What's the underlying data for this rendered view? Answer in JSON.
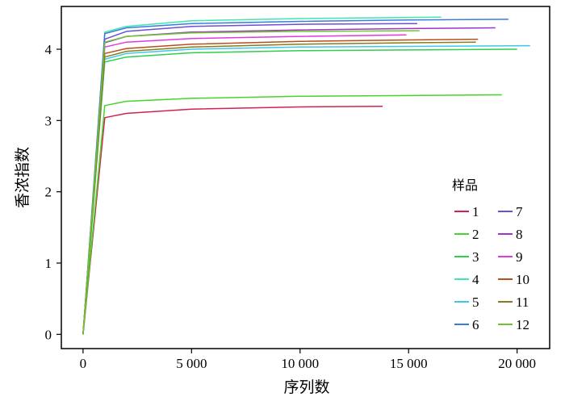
{
  "chart_data": {
    "type": "line",
    "xlabel": "序列数",
    "ylabel": "香浓指数",
    "xlim": [
      -1000,
      21500
    ],
    "ylim": [
      -0.2,
      4.6
    ],
    "x_ticks": [
      0,
      5000,
      10000,
      15000,
      20000
    ],
    "x_tick_labels": [
      "0",
      "5 000",
      "10 000",
      "15 000",
      "20 000"
    ],
    "y_ticks": [
      0,
      1,
      2,
      3,
      4
    ],
    "y_tick_labels": [
      "0",
      "1",
      "2",
      "3",
      "4"
    ],
    "grid": false,
    "legend": {
      "title": "样品",
      "placement": "right",
      "columns": 2
    },
    "series": [
      {
        "name": "1",
        "color": "#d6204f",
        "x": [
          0,
          1000,
          2000,
          5000,
          10000,
          13800
        ],
        "y": [
          0,
          3.04,
          3.1,
          3.16,
          3.19,
          3.2
        ]
      },
      {
        "name": "2",
        "color": "#44d62c",
        "x": [
          0,
          1000,
          2000,
          5000,
          10000,
          15000,
          19300
        ],
        "y": [
          0,
          3.21,
          3.27,
          3.31,
          3.34,
          3.35,
          3.36
        ]
      },
      {
        "name": "3",
        "color": "#2ecf4a",
        "x": [
          0,
          1000,
          2000,
          5000,
          10000,
          15000,
          20000
        ],
        "y": [
          0,
          3.82,
          3.89,
          3.95,
          3.98,
          3.99,
          4.0
        ]
      },
      {
        "name": "4",
        "color": "#3ee6b0",
        "x": [
          0,
          1000,
          2000,
          5000,
          10000,
          16500
        ],
        "y": [
          0,
          4.24,
          4.32,
          4.4,
          4.43,
          4.45
        ]
      },
      {
        "name": "5",
        "color": "#3cc8ea",
        "x": [
          0,
          1000,
          2000,
          5000,
          10000,
          15000,
          20600
        ],
        "y": [
          0,
          3.86,
          3.94,
          4.0,
          4.03,
          4.04,
          4.05
        ]
      },
      {
        "name": "6",
        "color": "#3a7be0",
        "x": [
          0,
          1000,
          2000,
          5000,
          10000,
          15000,
          19600
        ],
        "y": [
          0,
          4.22,
          4.3,
          4.36,
          4.39,
          4.41,
          4.42
        ]
      },
      {
        "name": "7",
        "color": "#6a4fd8",
        "x": [
          0,
          1000,
          2000,
          5000,
          10000,
          15400
        ],
        "y": [
          0,
          4.14,
          4.25,
          4.32,
          4.35,
          4.36
        ]
      },
      {
        "name": "8",
        "color": "#9a35c8",
        "x": [
          0,
          1000,
          2000,
          5000,
          10000,
          15000,
          19000
        ],
        "y": [
          0,
          4.09,
          4.18,
          4.24,
          4.27,
          4.29,
          4.3
        ]
      },
      {
        "name": "9",
        "color": "#e03adf",
        "x": [
          0,
          1000,
          2000,
          5000,
          10000,
          14900
        ],
        "y": [
          0,
          4.03,
          4.1,
          4.15,
          4.18,
          4.2
        ]
      },
      {
        "name": "10",
        "color": "#b5501c",
        "x": [
          0,
          1000,
          2000,
          5000,
          10000,
          15000,
          18200
        ],
        "y": [
          0,
          3.94,
          4.01,
          4.07,
          4.11,
          4.13,
          4.14
        ]
      },
      {
        "name": "11",
        "color": "#8a7a1c",
        "x": [
          0,
          1000,
          2000,
          5000,
          10000,
          15000,
          18100
        ],
        "y": [
          0,
          3.89,
          3.97,
          4.03,
          4.07,
          4.09,
          4.1
        ]
      },
      {
        "name": "12",
        "color": "#6fc62c",
        "x": [
          0,
          1000,
          2000,
          5000,
          10000,
          15500
        ],
        "y": [
          0,
          4.1,
          4.18,
          4.23,
          4.25,
          4.26
        ]
      }
    ]
  }
}
